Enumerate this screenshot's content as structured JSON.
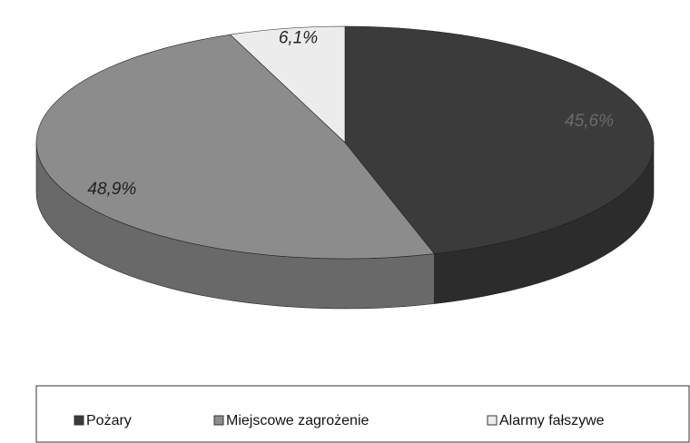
{
  "chart_data": {
    "type": "pie3d",
    "categories": [
      "Pożary",
      "Miejscowe zagrożenie",
      "Alarmy fałszywe"
    ],
    "values": [
      45.6,
      48.9,
      6.1
    ],
    "value_labels": [
      "45,6%",
      "48,9%",
      "6,1%"
    ],
    "colors": [
      "#3b3b3b",
      "#8c8c8c",
      "#ececec"
    ],
    "legend": "bottom"
  }
}
